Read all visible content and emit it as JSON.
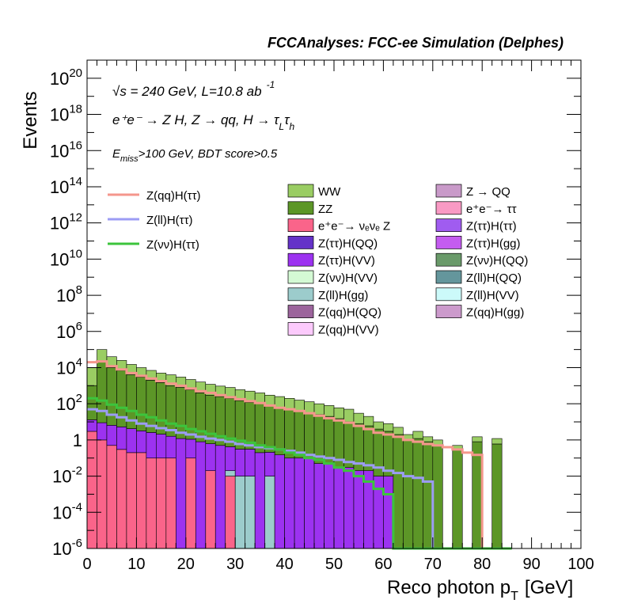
{
  "chart_data": {
    "type": "bar",
    "title": "FCCAnalyses: FCC-ee Simulation (Delphes)",
    "xlabel": "Reco photon p",
    "xlabel_sub": "T",
    "xlabel_unit": "[GeV]",
    "ylabel": "Events",
    "xlim": [
      0,
      100
    ],
    "ylim": [
      1e-06,
      1e+21
    ],
    "yscale": "log",
    "x_ticks": [
      "0",
      "10",
      "20",
      "30",
      "40",
      "50",
      "60",
      "70",
      "80",
      "90",
      "100"
    ],
    "y_ticks": [
      {
        "exp": "-6",
        "base": "10"
      },
      {
        "exp": "-4",
        "base": "10"
      },
      {
        "exp": "-2",
        "base": "10"
      },
      {
        "exp": "",
        "base": "1"
      },
      {
        "exp": "2",
        "base": "10"
      },
      {
        "exp": "4",
        "base": "10"
      },
      {
        "exp": "6",
        "base": "10"
      },
      {
        "exp": "8",
        "base": "10"
      },
      {
        "exp": "10",
        "base": "10"
      },
      {
        "exp": "12",
        "base": "10"
      },
      {
        "exp": "14",
        "base": "10"
      },
      {
        "exp": "16",
        "base": "10"
      },
      {
        "exp": "18",
        "base": "10"
      },
      {
        "exp": "20",
        "base": "10"
      }
    ],
    "annotations": {
      "energy": "√s = 240 GeV, L=10.8 ab",
      "energy_sup": "-1",
      "process": "e⁺e⁻ → Z H, Z → qq, H → τ",
      "process_l": "L",
      "process_tau": "τ",
      "process_h": "h",
      "cut_pre": "E",
      "cut_sub": "miss",
      "cut_post": ">100 GeV, BDT score>0.5"
    },
    "legend_position": "top",
    "signal_legend": [
      {
        "name": "Z(qq)H(ττ)",
        "color": "#f4968c"
      },
      {
        "name": "Z(ll)H(ττ)",
        "color": "#9c9cf4"
      },
      {
        "name": "Z(νν)H(ττ)",
        "color": "#3cc43c"
      }
    ],
    "background_legend": [
      {
        "name": "WW",
        "color": "#9acd63"
      },
      {
        "name": "Z → QQ",
        "color": "#c99ac9"
      },
      {
        "name": "ZZ",
        "color": "#5c9627"
      },
      {
        "name": "e⁺e⁻→ ττ",
        "color": "#f99ac4"
      },
      {
        "name": "e⁺e⁻→ νₑνₑ Z",
        "color": "#fa648a"
      },
      {
        "name": "Z(ττ)H(ττ)",
        "color": "#a05cf0"
      },
      {
        "name": "Z(ττ)H(QQ)",
        "color": "#6432c8"
      },
      {
        "name": "Z(ττ)H(gg)",
        "color": "#c45cf0"
      },
      {
        "name": "Z(ττ)H(VV)",
        "color": "#9c32f0"
      },
      {
        "name": "Z(νν)H(QQ)",
        "color": "#6a9a6a"
      },
      {
        "name": "Z(νν)H(VV)",
        "color": "#d4fad4"
      },
      {
        "name": "Z(ll)H(QQ)",
        "color": "#64969c"
      },
      {
        "name": "Z(ll)H(gg)",
        "color": "#9ccccc"
      },
      {
        "name": "Z(ll)H(VV)",
        "color": "#ccfafa"
      },
      {
        "name": "Z(qq)H(QQ)",
        "color": "#9c649c"
      },
      {
        "name": "Z(qq)H(gg)",
        "color": "#cc9acc"
      },
      {
        "name": "Z(qq)H(VV)",
        "color": "#fccafc"
      }
    ],
    "bin_width": 2,
    "stack_total": [
      10000.0,
      100000.0,
      40000.0,
      25000.0,
      15000.0,
      10000.0,
      7000.0,
      5000.0,
      4000.0,
      3000.0,
      2200.0,
      1600.0,
      1200.0,
      1000.0,
      800.0,
      600.0,
      500.0,
      400.0,
      300.0,
      250.0,
      200.0,
      160.0,
      130.0,
      100.0,
      80.0,
      60.0,
      50.0,
      30.0,
      20.0,
      10.0,
      8,
      5,
      2,
      3,
      1.5,
      1,
      0,
      0.5,
      0,
      1.5,
      0,
      1.2,
      0
    ],
    "stack_layers": [
      {
        "name": "e⁺e⁻→ νₑνₑ Z",
        "color": "#fa648a",
        "values": [
          3,
          1,
          0.5,
          0.3,
          0.2,
          0.2,
          0.1,
          0.1,
          0.1,
          0,
          0.1,
          0,
          0.02,
          0,
          0.01,
          0,
          0,
          0,
          0,
          0,
          0,
          0,
          0,
          0,
          0,
          0,
          0,
          0,
          0,
          0,
          0,
          0,
          0,
          0,
          0,
          0,
          0,
          0,
          0,
          0,
          0,
          0,
          0
        ]
      },
      {
        "name": "Z(ll)H(gg)",
        "color": "#9ccccc",
        "values": [
          0,
          0,
          0,
          0,
          0,
          0,
          0,
          0,
          0,
          0,
          0,
          0,
          0,
          0,
          0.01,
          0.01,
          0.01,
          0,
          0.01,
          0,
          0,
          0,
          0,
          0,
          0,
          0,
          0,
          0,
          0,
          0,
          0,
          0,
          0,
          0,
          0,
          0,
          0,
          0,
          0,
          0,
          0,
          0,
          0
        ]
      },
      {
        "name": "Z(ττ)H(VV)",
        "color": "#9c32f0",
        "values": [
          10,
          8,
          6,
          5,
          4,
          3,
          2.5,
          2,
          1.5,
          1.2,
          1,
          0.8,
          0.6,
          0.5,
          0.4,
          0.3,
          0.3,
          0.2,
          0.2,
          0.15,
          0.1,
          0.1,
          0.1,
          0.05,
          0.05,
          0.03,
          0.03,
          0.02,
          0.02,
          0.01,
          0.01,
          0,
          0,
          0,
          0,
          0,
          0,
          0,
          0,
          0,
          0,
          0,
          0
        ]
      },
      {
        "name": "ZZ",
        "color": "#5c9627",
        "values": [
          1000.0,
          20000.0,
          10000.0,
          7000.0,
          4000.0,
          3000.0,
          2000.0,
          1500.0,
          1000.0,
          800.0,
          600.0,
          400.0,
          300.0,
          250.0,
          200.0,
          150.0,
          120.0,
          100.0,
          80.0,
          60.0,
          50.0,
          40.0,
          30.0,
          25.0,
          20.0,
          15.0,
          10.0,
          8,
          6,
          4,
          3,
          2,
          1,
          1.2,
          0.8,
          0.5,
          0,
          0.3,
          0,
          0.8,
          0,
          0.6,
          0
        ]
      },
      {
        "name": "WW",
        "color": "#9acd63",
        "values": [
          9000.0,
          80000.0,
          30000.0,
          18000.0,
          11000.0,
          7000.0,
          5000.0,
          3500.0,
          3000.0,
          2200.0,
          1600.0,
          1200.0,
          900.0,
          700.0,
          600.0,
          450.0,
          380.0,
          300.0,
          220.0,
          190.0,
          150.0,
          120.0,
          100.0,
          75.0,
          60.0,
          45.0,
          40.0,
          22.0,
          14.0,
          6,
          5,
          3,
          1,
          1.8,
          0.7,
          0.5,
          0,
          0.2,
          0,
          0.7,
          0,
          0.6,
          0
        ]
      }
    ],
    "series": [
      {
        "name": "Z(qq)H(ττ)",
        "color": "#f4968c",
        "values": [
          20000.0,
          22000.0,
          12000.0,
          8000.0,
          5000.0,
          3500.0,
          2500.0,
          1800.0,
          1300.0,
          1000.0,
          700.0,
          500.0,
          400.0,
          300.0,
          230.0,
          180.0,
          140.0,
          110.0,
          80.0,
          60.0,
          50.0,
          40.0,
          30.0,
          22.0,
          16.0,
          12.0,
          9,
          6,
          4,
          2.5,
          2,
          1.5,
          1,
          0.8,
          0.6,
          0.5,
          0.4,
          0.3,
          0.2,
          0.15,
          0,
          0,
          0
        ]
      },
      {
        "name": "Z(ll)H(ττ)",
        "color": "#9c9cf4",
        "values": [
          50,
          40,
          25,
          18,
          12,
          8,
          6,
          4.5,
          3.5,
          2.5,
          2,
          1.5,
          1.2,
          1,
          0.8,
          0.6,
          0.5,
          0.4,
          0.35,
          0.3,
          0.25,
          0.2,
          0.15,
          0.12,
          0.1,
          0.08,
          0.06,
          0.05,
          0.04,
          0.03,
          0.02,
          0.015,
          0.01,
          0.008,
          0.005,
          0,
          0,
          0,
          0,
          0,
          0,
          0,
          0
        ]
      },
      {
        "name": "Z(νν)H(ττ)",
        "color": "#3cc43c",
        "values": [
          200,
          150,
          90,
          60,
          40,
          25,
          18,
          12,
          8,
          6,
          4,
          3,
          2.2,
          1.6,
          1.2,
          0.9,
          0.7,
          0.5,
          0.4,
          0.3,
          0.2,
          0.15,
          0.1,
          0.08,
          0.05,
          0.03,
          0.02,
          0.01,
          0.005,
          0.002,
          0.001,
          0,
          0,
          0,
          0,
          0,
          0,
          0,
          0,
          0,
          0,
          0,
          0
        ]
      }
    ]
  }
}
